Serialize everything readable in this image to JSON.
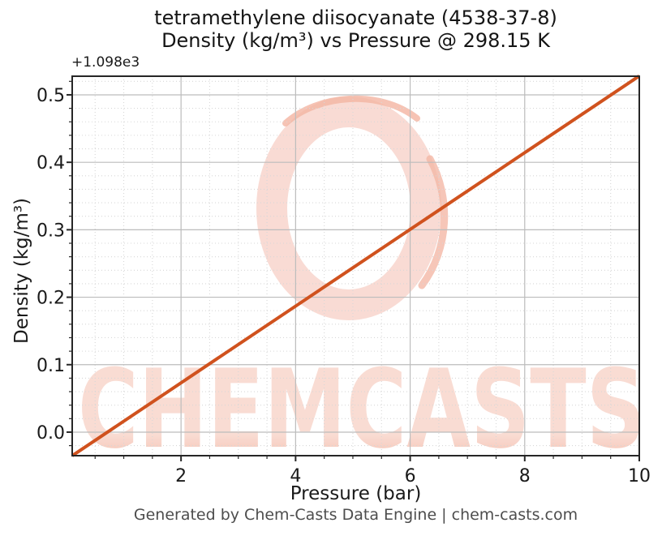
{
  "header": {
    "title_line1": "tetramethylene diisocyanate (4538-37-8)",
    "title_line2": "Density (kg/m³) vs Pressure @ 298.15 K"
  },
  "axes": {
    "xlabel": "Pressure (bar)",
    "ylabel": "Density (kg/m³)",
    "y_offset_label": "+1.098e3"
  },
  "footer": {
    "text": "Generated by Chem-Casts Data Engine | chem-casts.com"
  },
  "watermark": {
    "text": "CHEMCASTS",
    "text_color_top": "#f9d6cc",
    "text_color_bottom": "#f3ad94",
    "ring_color": "#f9dad2",
    "ring_accent_color": "#f3b4a1"
  },
  "colors": {
    "line": "#d0521e",
    "spine": "#262626",
    "tick": "#262626",
    "tick_label": "#1a1a1a",
    "grid_major": "#bcbcbc",
    "grid_minor": "#d7d7d7",
    "footer_text": "#4d4d4d"
  },
  "chart_data": {
    "type": "line",
    "title": "tetramethylene diisocyanate (4538-37-8)\nDensity (kg/m³) vs Pressure @ 298.15 K",
    "xlabel": "Pressure (bar)",
    "ylabel": "Density (kg/m³)",
    "x_units": "bar",
    "y_units": "kg/m³",
    "temperature_label": "298.15 K",
    "cas_number": "4538-37-8",
    "substance": "tetramethylene diisocyanate",
    "xlim": [
      0.1,
      10
    ],
    "ylim": [
      1097.965,
      1098.528
    ],
    "y_axis_offset": 1098,
    "y_axis_offset_label": "+1.098e3",
    "ylim_display": [
      -0.0349,
      0.5276
    ],
    "x_ticks": [
      2,
      4,
      6,
      8,
      10
    ],
    "x_tick_labels": [
      "2",
      "4",
      "6",
      "8",
      "10"
    ],
    "y_ticks_display": [
      0.0,
      0.1,
      0.2,
      0.3,
      0.4,
      0.5
    ],
    "y_tick_labels": [
      "0.0",
      "0.1",
      "0.2",
      "0.3",
      "0.4",
      "0.5"
    ],
    "x_minor_step": 0.5,
    "y_minor_step_display": 0.02,
    "grid": true,
    "legend": false,
    "series": [
      {
        "name": "Density",
        "color": "#d0521e",
        "linewidth": 4,
        "x": [
          0.1,
          10
        ],
        "y": [
          1097.965,
          1098.528
        ],
        "slope_kg_m3_per_bar": 0.0568
      }
    ]
  }
}
